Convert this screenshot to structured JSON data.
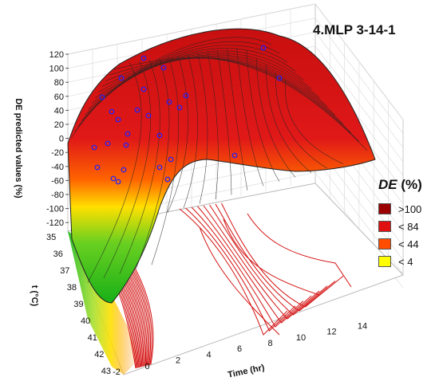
{
  "chart_data": {
    "type": "surface3d",
    "title": "4.MLP 3-14-1",
    "zlabel": "DE predicted values (%)",
    "xlabel": "Time (hr)",
    "ylabel_prefix": "t",
    "ylabel_unit": "(°C)",
    "z_ticks": [
      "120",
      "100",
      "80",
      "60",
      "40",
      "20",
      "0",
      "-20",
      "-40",
      "-60",
      "-80",
      "-100",
      "-120"
    ],
    "x_ticks": [
      "-2",
      "0",
      "2",
      "4",
      "6",
      "8",
      "10",
      "12",
      "14"
    ],
    "y_ticks": [
      "35",
      "36",
      "37",
      "38",
      "39",
      "40",
      "41",
      "42",
      "43"
    ],
    "legend_title_main": "DE",
    "legend_title_unit": "(%)",
    "legend": [
      {
        "label": ">100",
        "color": "#9b0000"
      },
      {
        "label": "< 84",
        "color": "#e01010"
      },
      {
        "label": "< 44",
        "color": "#ff4d00"
      },
      {
        "label": "< 4",
        "color": "#ffff00"
      }
    ],
    "colors": {
      "surface_high": "#d01010",
      "surface_mid": "#ff6a00",
      "surface_low": "#ffe000",
      "surface_vlow": "#28c020",
      "contour": "#d41010",
      "point_marker": "#2020ff"
    }
  }
}
